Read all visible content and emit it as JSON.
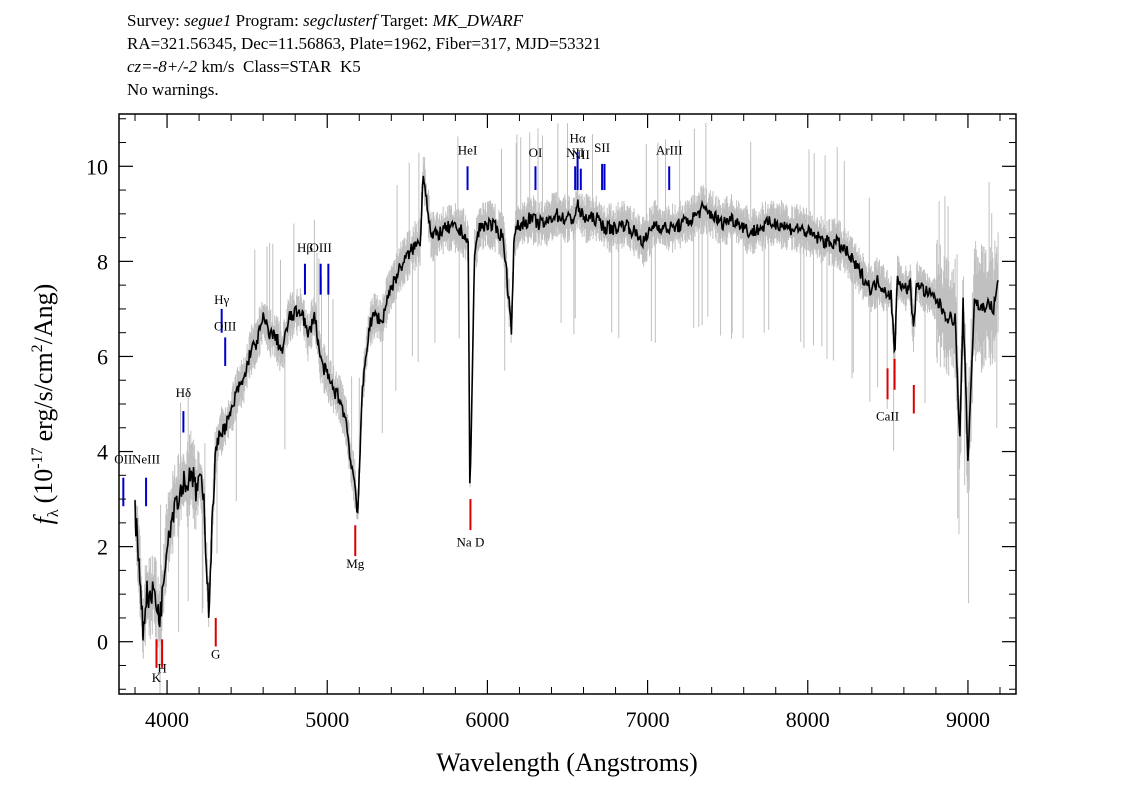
{
  "header": {
    "survey_label": "Survey:",
    "survey": "segue1",
    "program_label": "Program:",
    "program": "segclusterf",
    "target_label": "Target:",
    "target": "MK_DWARF",
    "line2": "RA=321.56345, Dec=11.56863, Plate=1962, Fiber=317, MJD=53321",
    "cz_label": "cz",
    "cz_value": "=-8+/-2",
    "cz_unit": " km/s  Class=STAR  K5",
    "warnings": "No warnings."
  },
  "colors": {
    "flux": "#000000",
    "error": "#c0c0c0",
    "emission": "#0000cc",
    "absorption": "#dd0000"
  },
  "chart_data": {
    "type": "line",
    "xlabel": "Wavelength (Angstroms)",
    "ylabel_symbol": "f",
    "ylabel_sub": "λ",
    "ylabel_paren_open": "(10",
    "ylabel_exp": "-17",
    "ylabel_unit": "erg/s/cm",
    "ylabel_exp2": "2",
    "ylabel_end": "/Ang)",
    "xlim": [
      3700,
      9300
    ],
    "ylim": [
      -1.1,
      11.1
    ],
    "xticks": [
      4000,
      5000,
      6000,
      7000,
      8000,
      9000
    ],
    "yticks": [
      0,
      2,
      4,
      6,
      8,
      10
    ],
    "grid": false,
    "series": [
      {
        "kind": "flux",
        "x": [
          3800,
          3830,
          3850,
          3870,
          3900,
          3920,
          3950,
          3970,
          4000,
          4030,
          4050,
          4080,
          4100,
          4130,
          4150,
          4180,
          4200,
          4230,
          4260,
          4300,
          4330,
          4360,
          4400,
          4440,
          4480,
          4520,
          4560,
          4600,
          4640,
          4680,
          4720,
          4760,
          4800,
          4840,
          4880,
          4920,
          4960,
          5000,
          5040,
          5080,
          5120,
          5150,
          5170,
          5190,
          5220,
          5260,
          5300,
          5340,
          5380,
          5420,
          5460,
          5500,
          5540,
          5580,
          5600,
          5650,
          5700,
          5750,
          5800,
          5850,
          5880,
          5890,
          5900,
          5920,
          5950,
          6000,
          6050,
          6100,
          6150,
          6165,
          6180,
          6220,
          6270,
          6320,
          6370,
          6420,
          6480,
          6540,
          6562,
          6580,
          6620,
          6680,
          6740,
          6800,
          6860,
          6920,
          6980,
          7040,
          7100,
          7160,
          7220,
          7280,
          7340,
          7400,
          7460,
          7520,
          7580,
          7640,
          7700,
          7760,
          7820,
          7880,
          7940,
          8000,
          8060,
          8120,
          8180,
          8240,
          8280,
          8320,
          8360,
          8400,
          8440,
          8480,
          8520,
          8542,
          8560,
          8600,
          8640,
          8662,
          8680,
          8720,
          8760,
          8800,
          8840,
          8880,
          8920,
          8950,
          8970,
          9000,
          9040,
          9080,
          9120,
          9160,
          9190
        ],
        "y": [
          2.7,
          1.5,
          0.2,
          1.0,
          0.9,
          1.1,
          0.5,
          0.9,
          2.2,
          2.6,
          3.0,
          3.1,
          3.4,
          3.3,
          3.7,
          3.1,
          3.5,
          2.9,
          0.7,
          3.9,
          4.4,
          4.5,
          4.8,
          5.3,
          5.5,
          6.1,
          6.3,
          6.8,
          6.5,
          6.4,
          6.1,
          6.8,
          6.9,
          7.0,
          6.4,
          6.9,
          5.9,
          5.6,
          5.3,
          5.1,
          4.6,
          3.7,
          3.4,
          2.7,
          5.3,
          6.6,
          6.9,
          6.7,
          7.3,
          7.6,
          7.9,
          8.1,
          8.3,
          8.4,
          9.9,
          8.5,
          8.6,
          8.7,
          8.7,
          8.6,
          8.4,
          3.3,
          4.5,
          8.2,
          8.7,
          8.8,
          8.7,
          8.5,
          6.6,
          8.3,
          8.7,
          8.8,
          8.9,
          8.8,
          8.8,
          9.0,
          8.9,
          8.9,
          9.2,
          9.0,
          8.9,
          8.9,
          8.7,
          8.7,
          8.8,
          8.6,
          8.4,
          8.8,
          8.7,
          8.7,
          8.8,
          8.9,
          9.1,
          9.0,
          8.8,
          8.9,
          8.8,
          8.6,
          8.7,
          8.8,
          8.8,
          8.7,
          8.7,
          8.6,
          8.5,
          8.4,
          8.4,
          8.2,
          8.0,
          7.8,
          7.6,
          7.4,
          7.6,
          7.4,
          7.3,
          6.0,
          7.7,
          7.4,
          7.5,
          6.5,
          7.6,
          7.4,
          7.3,
          7.2,
          7.0,
          6.8,
          6.8,
          4.2,
          7.1,
          3.8,
          7.2,
          7.0,
          7.1,
          7.0,
          7.6
        ]
      }
    ],
    "annotations": [
      {
        "label": "OII",
        "x": 3727,
        "kind": "emission",
        "label_y": 3.75,
        "line": [
          2.85,
          3.45
        ]
      },
      {
        "label": "NeIII",
        "x": 3869,
        "kind": "emission",
        "label_y": 3.75,
        "line": [
          2.85,
          3.45
        ]
      },
      {
        "label": "Hδ",
        "x": 4102,
        "kind": "emission",
        "label_y": 5.15,
        "line": [
          4.4,
          4.85
        ]
      },
      {
        "label": "Hγ",
        "x": 4341,
        "kind": "emission",
        "label_y": 7.1,
        "line": [
          6.5,
          7.0
        ]
      },
      {
        "label": "OIII",
        "x": 4363,
        "kind": "emission",
        "label_y": 6.55,
        "line": [
          5.8,
          6.4
        ]
      },
      {
        "label": "Hβ",
        "x": 4861,
        "kind": "emission",
        "label_y": 8.2,
        "line": [
          7.3,
          7.95
        ]
      },
      {
        "label": "OIII",
        "x": 4959,
        "kind": "emission",
        "label_y": 8.2,
        "line": [
          7.3,
          7.95
        ]
      },
      {
        "label": "",
        "x": 5007,
        "kind": "emission",
        "label_y": 8.2,
        "line": [
          7.3,
          7.95
        ]
      },
      {
        "label": "HeI",
        "x": 5876,
        "kind": "emission",
        "label_y": 10.25,
        "line": [
          9.5,
          10.0
        ]
      },
      {
        "label": "OI",
        "x": 6300,
        "kind": "emission",
        "label_y": 10.2,
        "line": [
          9.5,
          10.0
        ]
      },
      {
        "label": "NII",
        "x": 6548,
        "kind": "emission",
        "label_y": 10.2,
        "line": [
          9.5,
          10.0
        ]
      },
      {
        "label": "Hα",
        "x": 6563,
        "kind": "emission",
        "label_y": 10.5,
        "line": [
          9.5,
          10.3
        ]
      },
      {
        "label": "NII",
        "x": 6583,
        "kind": "emission",
        "label_y": 10.15,
        "line": [
          9.5,
          9.95
        ]
      },
      {
        "label": "SII",
        "x": 6716,
        "kind": "emission",
        "label_y": 10.3,
        "line": [
          9.5,
          10.05
        ]
      },
      {
        "label": "",
        "x": 6731,
        "kind": "emission",
        "label_y": 10.3,
        "line": [
          9.5,
          10.05
        ]
      },
      {
        "label": "ArIII",
        "x": 7135,
        "kind": "emission",
        "label_y": 10.25,
        "line": [
          9.5,
          10.0
        ]
      },
      {
        "label": "K",
        "x": 3934,
        "kind": "absorption",
        "label_y": -0.85,
        "line": [
          -0.55,
          0.05
        ]
      },
      {
        "label": "H",
        "x": 3969,
        "kind": "absorption",
        "label_y": -0.65,
        "line": [
          -0.55,
          0.05
        ]
      },
      {
        "label": "G",
        "x": 4304,
        "kind": "absorption",
        "label_y": -0.35,
        "line": [
          -0.1,
          0.5
        ]
      },
      {
        "label": "Mg",
        "x": 5175,
        "kind": "absorption",
        "label_y": 1.55,
        "line": [
          1.8,
          2.45
        ]
      },
      {
        "label": "Na D",
        "x": 5894,
        "kind": "absorption",
        "label_y": 2.0,
        "line": [
          2.35,
          3.0
        ]
      },
      {
        "label": "CaII",
        "x": 8498,
        "kind": "absorption",
        "label_y": 4.65,
        "line": [
          5.1,
          5.75
        ]
      },
      {
        "label": "",
        "x": 8542,
        "kind": "absorption",
        "label_y": 4.65,
        "line": [
          5.3,
          5.95
        ]
      },
      {
        "label": "",
        "x": 8662,
        "kind": "absorption",
        "label_y": 4.65,
        "line": [
          4.8,
          5.4
        ]
      }
    ]
  }
}
